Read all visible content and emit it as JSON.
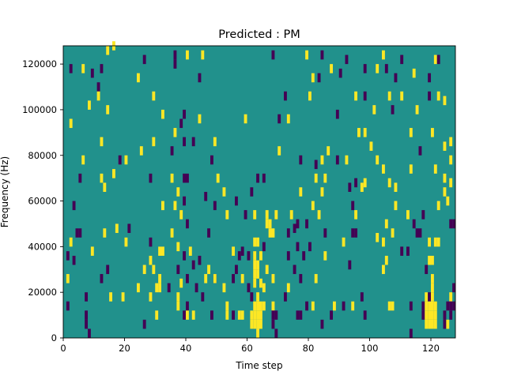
{
  "chart_data": {
    "type": "heatmap",
    "title": "Predicted : PM",
    "xlabel": "Time step",
    "ylabel": "Frequency (Hz)",
    "xlim": [
      0,
      128
    ],
    "ylim": [
      0,
      128000
    ],
    "xticks": [
      0,
      20,
      40,
      60,
      80,
      100,
      120
    ],
    "yticks": [
      0,
      20000,
      40000,
      60000,
      80000,
      100000,
      120000
    ],
    "ytick_labels": [
      "0",
      "20000",
      "40000",
      "60000",
      "80000",
      "100000",
      "120000"
    ],
    "grid": false,
    "legend": "none",
    "colormap": "viridis",
    "colors": {
      "background": "#21918c",
      "high": "#fde725",
      "low": "#440154"
    },
    "value_levels": {
      "background": 0,
      "high": 1,
      "low": -1
    },
    "background_value": 0,
    "cell_height": 4000,
    "cells": [
      [
        14,
        124000,
        1
      ],
      [
        16,
        126000,
        1
      ],
      [
        36,
        122000,
        -1
      ],
      [
        40,
        122000,
        1
      ],
      [
        45,
        122000,
        1
      ],
      [
        68,
        122000,
        -1
      ],
      [
        79,
        122000,
        1
      ],
      [
        84,
        122000,
        -1
      ],
      [
        92,
        120000,
        -1
      ],
      [
        104,
        122000,
        1
      ],
      [
        110,
        120000,
        -1
      ],
      [
        121,
        120000,
        1
      ],
      [
        122,
        120000,
        -1
      ],
      [
        26,
        120000,
        -1
      ],
      [
        36,
        118000,
        -1
      ],
      [
        2,
        116000,
        -1
      ],
      [
        6,
        116000,
        1
      ],
      [
        9,
        114000,
        -1
      ],
      [
        12,
        116000,
        -1
      ],
      [
        87,
        116000,
        1
      ],
      [
        90,
        114000,
        -1
      ],
      [
        98,
        116000,
        -1
      ],
      [
        102,
        116000,
        1
      ],
      [
        105,
        116000,
        -1
      ],
      [
        108,
        112000,
        -1
      ],
      [
        114,
        114000,
        1
      ],
      [
        119,
        112000,
        -1
      ],
      [
        24,
        112000,
        1
      ],
      [
        44,
        112000,
        -1
      ],
      [
        81,
        112000,
        1
      ],
      [
        83,
        112000,
        -1
      ],
      [
        11,
        108000,
        -1
      ],
      [
        11,
        104000,
        1
      ],
      [
        29,
        104000,
        1
      ],
      [
        72,
        104000,
        -1
      ],
      [
        80,
        104000,
        1
      ],
      [
        95,
        104000,
        1
      ],
      [
        98,
        104000,
        -1
      ],
      [
        106,
        104000,
        1
      ],
      [
        110,
        104000,
        1
      ],
      [
        119,
        104000,
        -1
      ],
      [
        122,
        104000,
        1
      ],
      [
        124,
        102000,
        1
      ],
      [
        8,
        100000,
        1
      ],
      [
        14,
        98000,
        1
      ],
      [
        32,
        96000,
        1
      ],
      [
        39,
        96000,
        -1
      ],
      [
        44,
        94000,
        1
      ],
      [
        59,
        94000,
        1
      ],
      [
        70,
        94000,
        -1
      ],
      [
        73,
        94000,
        1
      ],
      [
        89,
        96000,
        -1
      ],
      [
        101,
        98000,
        1
      ],
      [
        107,
        98000,
        -1
      ],
      [
        115,
        98000,
        1
      ],
      [
        2,
        92000,
        1
      ],
      [
        38,
        92000,
        -1
      ],
      [
        96,
        88000,
        1
      ],
      [
        98,
        88000,
        1
      ],
      [
        113,
        88000,
        1
      ],
      [
        120,
        88000,
        1
      ],
      [
        36,
        88000,
        1
      ],
      [
        12,
        84000,
        1
      ],
      [
        29,
        84000,
        1
      ],
      [
        42,
        84000,
        -1
      ],
      [
        49,
        84000,
        1
      ],
      [
        39,
        84000,
        -1
      ],
      [
        126,
        84000,
        1
      ],
      [
        25,
        80000,
        1
      ],
      [
        35,
        80000,
        -1
      ],
      [
        70,
        80000,
        1
      ],
      [
        86,
        80000,
        1
      ],
      [
        100,
        82000,
        1
      ],
      [
        116,
        80000,
        -1
      ],
      [
        124,
        82000,
        1
      ],
      [
        6,
        76000,
        1
      ],
      [
        18,
        76000,
        -1
      ],
      [
        20,
        76000,
        1
      ],
      [
        48,
        76000,
        -1
      ],
      [
        77,
        76000,
        -1
      ],
      [
        84,
        76000,
        1
      ],
      [
        89,
        76000,
        -1
      ],
      [
        92,
        76000,
        1
      ],
      [
        102,
        76000,
        1
      ],
      [
        126,
        76000,
        1
      ],
      [
        82,
        74000,
        -1
      ],
      [
        104,
        72000,
        1
      ],
      [
        113,
        72000,
        1
      ],
      [
        121,
        72000,
        1
      ],
      [
        124,
        68000,
        1
      ],
      [
        5,
        68000,
        -1
      ],
      [
        12,
        68000,
        1
      ],
      [
        16,
        70000,
        1
      ],
      [
        28,
        68000,
        -1
      ],
      [
        35,
        68000,
        1
      ],
      [
        39,
        68000,
        -1
      ],
      [
        40,
        68000,
        -1
      ],
      [
        50,
        68000,
        1
      ],
      [
        63,
        68000,
        -1
      ],
      [
        65,
        68000,
        -1
      ],
      [
        82,
        68000,
        1
      ],
      [
        85,
        68000,
        1
      ],
      [
        95,
        66000,
        -1
      ],
      [
        98,
        66000,
        1
      ],
      [
        106,
        66000,
        1
      ],
      [
        108,
        64000,
        1
      ],
      [
        13,
        64000,
        1
      ],
      [
        37,
        62000,
        1
      ],
      [
        46,
        60000,
        -1
      ],
      [
        52,
        62000,
        1
      ],
      [
        61,
        62000,
        -1
      ],
      [
        77,
        62000,
        1
      ],
      [
        84,
        62000,
        1
      ],
      [
        93,
        64000,
        -1
      ],
      [
        97,
        64000,
        1
      ],
      [
        3,
        56000,
        -1
      ],
      [
        32,
        56000,
        1
      ],
      [
        36,
        56000,
        1
      ],
      [
        39,
        58000,
        -1
      ],
      [
        49,
        56000,
        -1
      ],
      [
        56,
        58000,
        -1
      ],
      [
        81,
        56000,
        1
      ],
      [
        94,
        56000,
        -1
      ],
      [
        108,
        56000,
        1
      ],
      [
        122,
        56000,
        1
      ],
      [
        125,
        58000,
        1
      ],
      [
        124,
        62000,
        1
      ],
      [
        126,
        66000,
        1
      ],
      [
        38,
        52000,
        1
      ],
      [
        53,
        52000,
        1
      ],
      [
        59,
        52000,
        -1
      ],
      [
        62,
        52000,
        1
      ],
      [
        66,
        52000,
        1
      ],
      [
        69,
        52000,
        1
      ],
      [
        74,
        52000,
        1
      ],
      [
        83,
        52000,
        1
      ],
      [
        95,
        52000,
        1
      ],
      [
        112,
        52000,
        1
      ],
      [
        117,
        52000,
        -1
      ],
      [
        40,
        48000,
        -1
      ],
      [
        66,
        48000,
        1
      ],
      [
        67,
        48000,
        1
      ],
      [
        76,
        48000,
        -1
      ],
      [
        79,
        48000,
        -1
      ],
      [
        105,
        48000,
        1
      ],
      [
        114,
        48000,
        -1
      ],
      [
        126,
        48000,
        -1
      ],
      [
        127,
        48000,
        -1
      ],
      [
        4,
        44000,
        -1
      ],
      [
        5,
        44000,
        -1
      ],
      [
        13,
        44000,
        1
      ],
      [
        17,
        46000,
        1
      ],
      [
        21,
        46000,
        -1
      ],
      [
        35,
        44000,
        1
      ],
      [
        47,
        44000,
        -1
      ],
      [
        67,
        44000,
        1
      ],
      [
        68,
        44000,
        1
      ],
      [
        73,
        44000,
        -1
      ],
      [
        75,
        46000,
        -1
      ],
      [
        85,
        44000,
        -1
      ],
      [
        94,
        44000,
        -1
      ],
      [
        95,
        44000,
        -1
      ],
      [
        107,
        44000,
        1
      ],
      [
        115,
        44000,
        -1
      ],
      [
        116,
        44000,
        -1
      ],
      [
        2,
        40000,
        1
      ],
      [
        20,
        40000,
        1
      ],
      [
        28,
        40000,
        -1
      ],
      [
        31,
        36000,
        1
      ],
      [
        32,
        36000,
        1
      ],
      [
        37,
        38000,
        1
      ],
      [
        41,
        36000,
        1
      ],
      [
        55,
        36000,
        1
      ],
      [
        62,
        40000,
        1
      ],
      [
        63,
        40000,
        1
      ],
      [
        65,
        38000,
        -1
      ],
      [
        76,
        38000,
        -1
      ],
      [
        80,
        38000,
        -1
      ],
      [
        91,
        40000,
        1
      ],
      [
        102,
        42000,
        1
      ],
      [
        104,
        40000,
        1
      ],
      [
        119,
        40000,
        1
      ],
      [
        121,
        40000,
        1
      ],
      [
        122,
        40000,
        1
      ],
      [
        9,
        36000,
        1
      ],
      [
        58,
        36000,
        -1
      ],
      [
        60,
        34000,
        -1
      ],
      [
        1,
        34000,
        -1
      ],
      [
        28,
        32000,
        1
      ],
      [
        39,
        34000,
        -1
      ],
      [
        44,
        32000,
        -1
      ],
      [
        57,
        34000,
        -1
      ],
      [
        62,
        34000,
        1
      ],
      [
        64,
        34000,
        1
      ],
      [
        73,
        34000,
        -1
      ],
      [
        78,
        34000,
        -1
      ],
      [
        85,
        34000,
        1
      ],
      [
        105,
        32000,
        1
      ],
      [
        110,
        36000,
        -1
      ],
      [
        112,
        36000,
        -1
      ],
      [
        119,
        32000,
        1
      ],
      [
        120,
        32000,
        1
      ],
      [
        3,
        32000,
        -1
      ],
      [
        14,
        28000,
        -1
      ],
      [
        26,
        28000,
        1
      ],
      [
        29,
        28000,
        1
      ],
      [
        37,
        28000,
        -1
      ],
      [
        42,
        30000,
        -1
      ],
      [
        47,
        28000,
        1
      ],
      [
        56,
        28000,
        -1
      ],
      [
        62,
        30000,
        1
      ],
      [
        63,
        30000,
        1
      ],
      [
        66,
        28000,
        1
      ],
      [
        75,
        28000,
        -1
      ],
      [
        93,
        30000,
        -1
      ],
      [
        104,
        28000,
        1
      ],
      [
        118,
        28000,
        -1
      ],
      [
        1,
        24000,
        1
      ],
      [
        12,
        24000,
        -1
      ],
      [
        31,
        24000,
        1
      ],
      [
        40,
        24000,
        -1
      ],
      [
        49,
        24000,
        -1
      ],
      [
        55,
        24000,
        -1
      ],
      [
        58,
        24000,
        1
      ],
      [
        62,
        26000,
        1
      ],
      [
        63,
        26000,
        1
      ],
      [
        68,
        24000,
        1
      ],
      [
        77,
        24000,
        -1
      ],
      [
        82,
        24000,
        1
      ],
      [
        120,
        24000,
        1
      ],
      [
        24,
        20000,
        1
      ],
      [
        30,
        20000,
        1
      ],
      [
        31,
        20000,
        1
      ],
      [
        34,
        20000,
        -1
      ],
      [
        38,
        22000,
        1
      ],
      [
        43,
        20000,
        -1
      ],
      [
        46,
        24000,
        1
      ],
      [
        49,
        24000,
        1
      ],
      [
        52,
        20000,
        1
      ],
      [
        60,
        20000,
        -1
      ],
      [
        62,
        22000,
        1
      ],
      [
        64,
        22000,
        1
      ],
      [
        65,
        20000,
        1
      ],
      [
        73,
        20000,
        1
      ],
      [
        120,
        20000,
        1
      ],
      [
        127,
        20000,
        -1
      ],
      [
        7,
        16000,
        -1
      ],
      [
        15,
        16000,
        1
      ],
      [
        19,
        16000,
        1
      ],
      [
        28,
        16000,
        1
      ],
      [
        37,
        16000,
        1
      ],
      [
        45,
        16000,
        -1
      ],
      [
        61,
        16000,
        -1
      ],
      [
        63,
        16000,
        1
      ],
      [
        72,
        16000,
        -1
      ],
      [
        97,
        16000,
        -1
      ],
      [
        118,
        16000,
        1
      ],
      [
        119,
        16000,
        -1
      ],
      [
        120,
        16000,
        1
      ],
      [
        126,
        16000,
        1
      ],
      [
        1,
        12000,
        -1
      ],
      [
        37,
        12000,
        1
      ],
      [
        40,
        12000,
        -1
      ],
      [
        53,
        12000,
        1
      ],
      [
        62,
        12000,
        1
      ],
      [
        63,
        12000,
        1
      ],
      [
        64,
        12000,
        1
      ],
      [
        65,
        12000,
        1
      ],
      [
        68,
        12000,
        1
      ],
      [
        79,
        12000,
        -1
      ],
      [
        81,
        12000,
        1
      ],
      [
        88,
        12000,
        1
      ],
      [
        91,
        12000,
        -1
      ],
      [
        94,
        12000,
        1
      ],
      [
        106,
        12000,
        1
      ],
      [
        107,
        12000,
        1
      ],
      [
        113,
        12000,
        -1
      ],
      [
        117,
        12000,
        -1
      ],
      [
        118,
        12000,
        1
      ],
      [
        119,
        12000,
        1
      ],
      [
        120,
        12000,
        1
      ],
      [
        121,
        12000,
        1
      ],
      [
        125,
        12000,
        -1
      ],
      [
        126,
        12000,
        -1
      ],
      [
        127,
        12000,
        -1
      ],
      [
        7,
        8000,
        -1
      ],
      [
        30,
        8000,
        1
      ],
      [
        40,
        8000,
        1
      ],
      [
        42,
        8000,
        1
      ],
      [
        39,
        8000,
        -1
      ],
      [
        48,
        8000,
        -1
      ],
      [
        53,
        8000,
        1
      ],
      [
        55,
        8000,
        -1
      ],
      [
        57,
        8000,
        1
      ],
      [
        58,
        8000,
        1
      ],
      [
        61,
        8000,
        1
      ],
      [
        62,
        8000,
        1
      ],
      [
        63,
        8000,
        1
      ],
      [
        64,
        8000,
        1
      ],
      [
        68,
        8000,
        -1
      ],
      [
        69,
        8000,
        -1
      ],
      [
        76,
        8000,
        -1
      ],
      [
        77,
        8000,
        -1
      ],
      [
        87,
        8000,
        -1
      ],
      [
        98,
        8000,
        -1
      ],
      [
        117,
        8000,
        -1
      ],
      [
        118,
        8000,
        1
      ],
      [
        119,
        8000,
        1
      ],
      [
        120,
        8000,
        1
      ],
      [
        121,
        8000,
        1
      ],
      [
        124,
        8000,
        -1
      ],
      [
        126,
        8000,
        -1
      ],
      [
        7,
        4000,
        -1
      ],
      [
        26,
        4000,
        -1
      ],
      [
        61,
        4000,
        1
      ],
      [
        62,
        4000,
        1
      ],
      [
        63,
        4000,
        1
      ],
      [
        64,
        4000,
        1
      ],
      [
        68,
        4000,
        -1
      ],
      [
        84,
        4000,
        -1
      ],
      [
        118,
        4000,
        1
      ],
      [
        119,
        4000,
        1
      ],
      [
        120,
        4000,
        1
      ],
      [
        121,
        4000,
        1
      ],
      [
        124,
        4000,
        -1
      ],
      [
        125,
        4000,
        1
      ],
      [
        8,
        0,
        -1
      ],
      [
        63,
        0,
        1
      ],
      [
        69,
        0,
        -1
      ],
      [
        113,
        0,
        -1
      ]
    ]
  }
}
